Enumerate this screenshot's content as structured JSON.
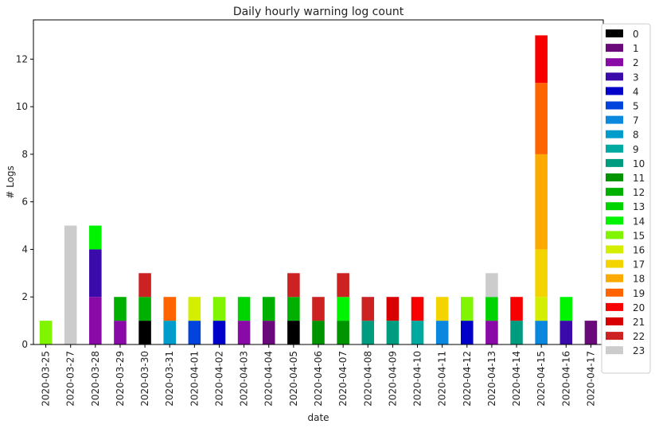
{
  "chart_data": {
    "type": "bar",
    "stacked": true,
    "title": "Daily hourly warning log count",
    "xlabel": "date",
    "ylabel": "# Logs",
    "ylim": [
      0,
      13.65
    ],
    "yticks": [
      0,
      2,
      4,
      6,
      8,
      10,
      12
    ],
    "grid": false,
    "legend_position": "right, outside plot",
    "categories": [
      "2020-03-25",
      "2020-03-27",
      "2020-03-28",
      "2020-03-29",
      "2020-03-30",
      "2020-03-31",
      "2020-04-01",
      "2020-04-02",
      "2020-04-03",
      "2020-04-04",
      "2020-04-05",
      "2020-04-06",
      "2020-04-07",
      "2020-04-08",
      "2020-04-09",
      "2020-04-10",
      "2020-04-11",
      "2020-04-12",
      "2020-04-13",
      "2020-04-14",
      "2020-04-15",
      "2020-04-16",
      "2020-04-17"
    ],
    "series": [
      {
        "name": "0",
        "color": "#000000",
        "values": [
          0,
          0,
          0,
          0,
          1,
          0,
          0,
          0,
          0,
          0,
          1,
          0,
          0,
          0,
          0,
          0,
          0,
          0,
          0,
          0,
          0,
          0,
          0
        ]
      },
      {
        "name": "1",
        "color": "#6a0a7a",
        "values": [
          0,
          0,
          0,
          0,
          0,
          0,
          0,
          0,
          0,
          1,
          0,
          0,
          0,
          0,
          0,
          0,
          0,
          0,
          0,
          0,
          0,
          0,
          1
        ]
      },
      {
        "name": "2",
        "color": "#8a0aa8",
        "values": [
          0,
          0,
          2,
          1,
          0,
          0,
          0,
          0,
          1,
          0,
          0,
          0,
          0,
          0,
          0,
          0,
          0,
          0,
          1,
          0,
          0,
          0,
          0
        ]
      },
      {
        "name": "3",
        "color": "#3a0aaa",
        "values": [
          0,
          0,
          2,
          0,
          0,
          0,
          0,
          0,
          0,
          0,
          0,
          0,
          0,
          0,
          0,
          0,
          0,
          0,
          0,
          0,
          0,
          1,
          0
        ]
      },
      {
        "name": "4",
        "color": "#0000c8",
        "values": [
          0,
          0,
          0,
          0,
          0,
          0,
          0,
          1,
          0,
          0,
          0,
          0,
          0,
          0,
          0,
          0,
          0,
          1,
          0,
          0,
          0,
          0,
          0
        ]
      },
      {
        "name": "5",
        "color": "#0044dd",
        "values": [
          0,
          0,
          0,
          0,
          0,
          0,
          1,
          0,
          0,
          0,
          0,
          0,
          0,
          0,
          0,
          0,
          0,
          0,
          0,
          0,
          0,
          0,
          0
        ]
      },
      {
        "name": "7",
        "color": "#0a88dd",
        "values": [
          0,
          0,
          0,
          0,
          0,
          0,
          0,
          0,
          0,
          0,
          0,
          0,
          0,
          0,
          0,
          0,
          1,
          0,
          0,
          0,
          1,
          0,
          0
        ]
      },
      {
        "name": "8",
        "color": "#009ccc",
        "values": [
          0,
          0,
          0,
          0,
          0,
          1,
          0,
          0,
          0,
          0,
          0,
          0,
          0,
          0,
          0,
          0,
          0,
          0,
          0,
          0,
          0,
          0,
          0
        ]
      },
      {
        "name": "9",
        "color": "#00aaa0",
        "values": [
          0,
          0,
          0,
          0,
          0,
          0,
          0,
          0,
          0,
          0,
          0,
          0,
          0,
          0,
          0,
          1,
          0,
          0,
          0,
          0,
          0,
          0,
          0
        ]
      },
      {
        "name": "10",
        "color": "#009c80",
        "values": [
          0,
          0,
          0,
          0,
          0,
          0,
          0,
          0,
          0,
          0,
          0,
          0,
          0,
          1,
          1,
          0,
          0,
          0,
          0,
          1,
          0,
          0,
          0
        ]
      },
      {
        "name": "11",
        "color": "#009400",
        "values": [
          0,
          0,
          0,
          0,
          0,
          0,
          0,
          0,
          0,
          0,
          0,
          1,
          1,
          0,
          0,
          0,
          0,
          0,
          0,
          0,
          0,
          0,
          0
        ]
      },
      {
        "name": "12",
        "color": "#00b000",
        "values": [
          0,
          0,
          0,
          1,
          1,
          0,
          0,
          0,
          0,
          1,
          1,
          0,
          0,
          0,
          0,
          0,
          0,
          0,
          0,
          0,
          0,
          0,
          0
        ]
      },
      {
        "name": "13",
        "color": "#00d400",
        "values": [
          0,
          0,
          0,
          0,
          0,
          0,
          0,
          0,
          1,
          0,
          0,
          0,
          0,
          0,
          0,
          0,
          0,
          0,
          1,
          0,
          0,
          0,
          0
        ]
      },
      {
        "name": "14",
        "color": "#00f400",
        "values": [
          0,
          0,
          1,
          0,
          0,
          0,
          0,
          0,
          0,
          0,
          0,
          0,
          1,
          0,
          0,
          0,
          0,
          0,
          0,
          0,
          0,
          1,
          0
        ]
      },
      {
        "name": "15",
        "color": "#80f400",
        "values": [
          1,
          0,
          0,
          0,
          0,
          0,
          0,
          1,
          0,
          0,
          0,
          0,
          0,
          0,
          0,
          0,
          0,
          1,
          0,
          0,
          0,
          0,
          0
        ]
      },
      {
        "name": "16",
        "color": "#d4ee00",
        "values": [
          0,
          0,
          0,
          0,
          0,
          0,
          1,
          0,
          0,
          0,
          0,
          0,
          0,
          0,
          0,
          0,
          0,
          0,
          0,
          0,
          1,
          0,
          0
        ]
      },
      {
        "name": "17",
        "color": "#f4d400",
        "values": [
          0,
          0,
          0,
          0,
          0,
          0,
          0,
          0,
          0,
          0,
          0,
          0,
          0,
          0,
          0,
          0,
          1,
          0,
          0,
          0,
          2,
          0,
          0
        ]
      },
      {
        "name": "18",
        "color": "#fcaa00",
        "values": [
          0,
          0,
          0,
          0,
          0,
          0,
          0,
          0,
          0,
          0,
          0,
          0,
          0,
          0,
          0,
          0,
          0,
          0,
          0,
          0,
          4,
          0,
          0
        ]
      },
      {
        "name": "19",
        "color": "#ff6400",
        "values": [
          0,
          0,
          0,
          0,
          0,
          1,
          0,
          0,
          0,
          0,
          0,
          0,
          0,
          0,
          0,
          0,
          0,
          0,
          0,
          0,
          3,
          0,
          0
        ]
      },
      {
        "name": "20",
        "color": "#f80000",
        "values": [
          0,
          0,
          0,
          0,
          0,
          0,
          0,
          0,
          0,
          0,
          0,
          0,
          0,
          0,
          0,
          1,
          0,
          0,
          0,
          1,
          2,
          0,
          0
        ]
      },
      {
        "name": "21",
        "color": "#d80000",
        "values": [
          0,
          0,
          0,
          0,
          0,
          0,
          0,
          0,
          0,
          0,
          0,
          0,
          0,
          0,
          1,
          0,
          0,
          0,
          0,
          0,
          0,
          0,
          0
        ]
      },
      {
        "name": "22",
        "color": "#cc2222",
        "values": [
          0,
          0,
          0,
          0,
          1,
          0,
          0,
          0,
          0,
          0,
          1,
          1,
          1,
          1,
          0,
          0,
          0,
          0,
          0,
          0,
          0,
          0,
          0
        ]
      },
      {
        "name": "23",
        "color": "#cccccc",
        "values": [
          0,
          5,
          0,
          0,
          0,
          0,
          0,
          0,
          0,
          0,
          0,
          0,
          0,
          0,
          0,
          0,
          0,
          0,
          1,
          0,
          0,
          0,
          0
        ]
      }
    ]
  }
}
